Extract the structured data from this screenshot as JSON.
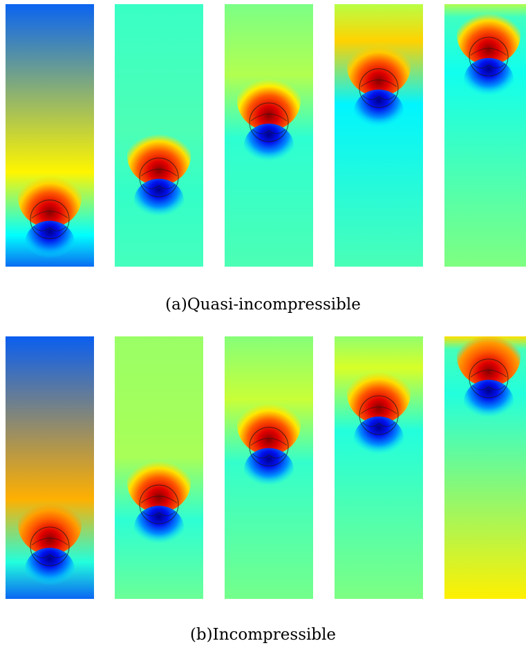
{
  "figure": {
    "captions": {
      "a": "(a)Quasi-incompressible",
      "b": "(b)Incompressible"
    },
    "rows": [
      {
        "id": "a",
        "panels": [
          {
            "top": "#0a64f0",
            "mid": "#fff500",
            "bot": "#0a6cf2",
            "band": "#00ffff",
            "bubble_y": 0.82,
            "glow": "#ffd700"
          },
          {
            "top": "#39ffc6",
            "mid": "#4dffb5",
            "bot": "#45ffbd",
            "band": "#33ffc8",
            "bubble_y": 0.66,
            "glow": "#ffe000"
          },
          {
            "top": "#7bff86",
            "mid": "#b2ff4f",
            "bot": "#4cffb4",
            "band": "#2dffd2",
            "bubble_y": 0.45,
            "glow": "#ffee00"
          },
          {
            "top": "#b9ff45",
            "mid": "#ffd200",
            "bot": "#4affb6",
            "band": "#00f5ff",
            "bubble_y": 0.32,
            "glow": "#ffcc00"
          },
          {
            "top": "#b0ff4e",
            "mid": "#3fffc1",
            "bot": "#7fff80",
            "band": "#10ffee",
            "bubble_y": 0.2,
            "glow": "#ffdd00"
          }
        ]
      },
      {
        "id": "b",
        "panels": [
          {
            "top": "#0a5ef0",
            "mid": "#ffb000",
            "bot": "#0a66f2",
            "band": "#22ffdd",
            "bubble_y": 0.8,
            "glow": "#ffa000"
          },
          {
            "top": "#9aff66",
            "mid": "#a8ff57",
            "bot": "#6aff97",
            "band": "#2dffd4",
            "bubble_y": 0.64,
            "glow": "#ffe200"
          },
          {
            "top": "#86ff79",
            "mid": "#c8ff37",
            "bot": "#74ff8b",
            "band": "#33ffcc",
            "bubble_y": 0.42,
            "glow": "#ffe800"
          },
          {
            "top": "#92ff6d",
            "mid": "#d8ff27",
            "bot": "#7dff82",
            "band": "#22ffdd",
            "bubble_y": 0.3,
            "glow": "#ffdd00"
          },
          {
            "top": "#ffe000",
            "mid": "#44ffbb",
            "bot": "#fff000",
            "band": "#22ffdd",
            "bubble_y": 0.16,
            "glow": "#ff9c00"
          }
        ]
      }
    ]
  }
}
